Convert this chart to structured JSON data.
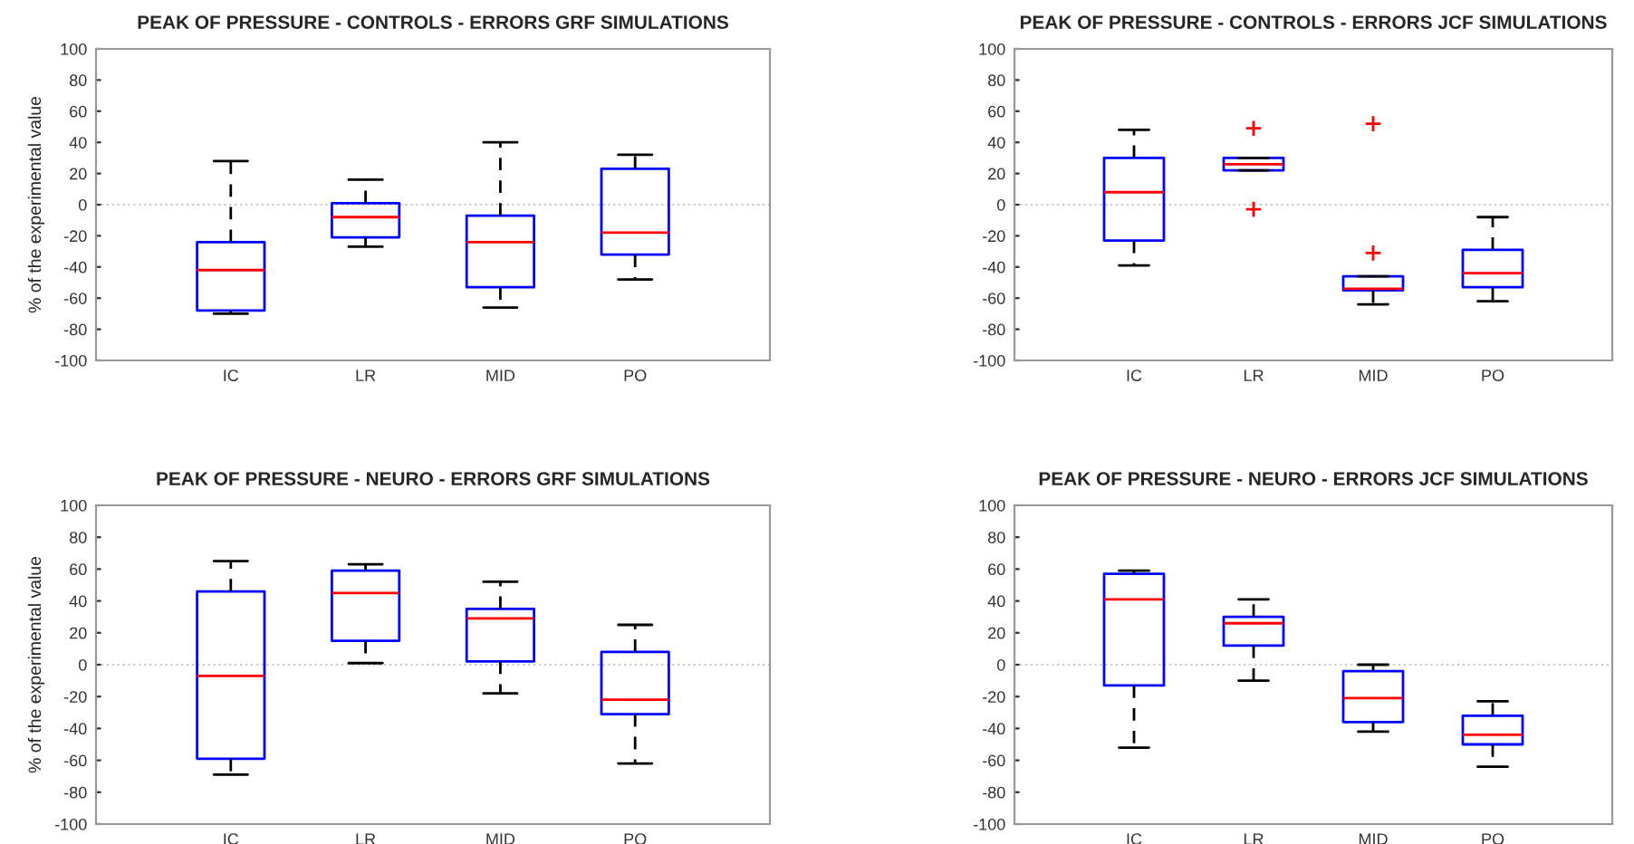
{
  "chart_data": [
    {
      "type": "box",
      "title": "PEAK OF PRESSURE - CONTROLS - ERRORS GRF SIMULATIONS",
      "ylabel": "% of the experimental value",
      "categories": [
        "IC",
        "LR",
        "MID",
        "PO"
      ],
      "boxes": [
        {
          "low": -70,
          "q1": -68,
          "median": -42,
          "q3": -24,
          "high": 28
        },
        {
          "low": -27,
          "q1": -21,
          "median": -8,
          "q3": 1,
          "high": 16
        },
        {
          "low": -66,
          "q1": -53,
          "median": -24,
          "q3": -7,
          "high": 40
        },
        {
          "low": -48,
          "q1": -32,
          "median": -18,
          "q3": 23,
          "high": 32
        }
      ],
      "ylim": [
        -100,
        100
      ],
      "yticks": [
        -100,
        -80,
        -60,
        -40,
        -20,
        0,
        20,
        40,
        60,
        80,
        100
      ],
      "grid": false,
      "ref_lines": [
        {
          "axis": "y",
          "value": 0,
          "color": "#c8c8c8",
          "line_style": "dotted"
        }
      ]
    },
    {
      "type": "box",
      "title": "PEAK OF PRESSURE - CONTROLS - ERRORS JCF SIMULATIONS",
      "categories": [
        "IC",
        "LR",
        "MID",
        "PO"
      ],
      "boxes": [
        {
          "low": -39,
          "q1": -23,
          "median": 8,
          "q3": 30,
          "high": 48
        },
        {
          "low": 22,
          "q1": 22,
          "median": 26,
          "q3": 30,
          "high": 30,
          "outliers": [
            49,
            -3
          ]
        },
        {
          "low": -64,
          "q1": -55,
          "median": -54,
          "q3": -46,
          "high": -46,
          "outliers": [
            52,
            -31
          ]
        },
        {
          "low": -62,
          "q1": -53,
          "median": -44,
          "q3": -29,
          "high": -8
        }
      ],
      "ylim": [
        -100,
        100
      ],
      "yticks": [
        -100,
        -80,
        -60,
        -40,
        -20,
        0,
        20,
        40,
        60,
        80,
        100
      ],
      "grid": false,
      "ref_lines": [
        {
          "axis": "y",
          "value": 0,
          "color": "#c8c8c8",
          "line_style": "dotted"
        }
      ]
    },
    {
      "type": "box",
      "title": "PEAK OF PRESSURE - NEURO - ERRORS GRF SIMULATIONS",
      "ylabel": "% of the experimental value",
      "categories": [
        "IC",
        "LR",
        "MID",
        "PO"
      ],
      "boxes": [
        {
          "low": -69,
          "q1": -59,
          "median": -7,
          "q3": 46,
          "high": 65
        },
        {
          "low": 1,
          "q1": 15,
          "median": 45,
          "q3": 59,
          "high": 63
        },
        {
          "low": -18,
          "q1": 2,
          "median": 29,
          "q3": 35,
          "high": 52
        },
        {
          "low": -62,
          "q1": -31,
          "median": -22,
          "q3": 8,
          "high": 25
        }
      ],
      "ylim": [
        -100,
        100
      ],
      "yticks": [
        -100,
        -80,
        -60,
        -40,
        -20,
        0,
        20,
        40,
        60,
        80,
        100
      ],
      "grid": false,
      "ref_lines": [
        {
          "axis": "y",
          "value": 0,
          "color": "#c8c8c8",
          "line_style": "dotted"
        }
      ]
    },
    {
      "type": "box",
      "title": "PEAK OF PRESSURE - NEURO - ERRORS JCF SIMULATIONS",
      "categories": [
        "IC",
        "LR",
        "MID",
        "PO"
      ],
      "boxes": [
        {
          "low": -52,
          "q1": -13,
          "median": 41,
          "q3": 57,
          "high": 59
        },
        {
          "low": -10,
          "q1": 12,
          "median": 26,
          "q3": 30,
          "high": 41
        },
        {
          "low": -42,
          "q1": -36,
          "median": -21,
          "q3": -4,
          "high": 0
        },
        {
          "low": -64,
          "q1": -50,
          "median": -44,
          "q3": -32,
          "high": -23
        }
      ],
      "ylim": [
        -100,
        100
      ],
      "yticks": [
        -100,
        -80,
        -60,
        -40,
        -20,
        0,
        20,
        40,
        60,
        80,
        100
      ],
      "grid": false,
      "ref_lines": [
        {
          "axis": "y",
          "value": 0,
          "color": "#c8c8c8",
          "line_style": "dotted"
        }
      ]
    }
  ]
}
